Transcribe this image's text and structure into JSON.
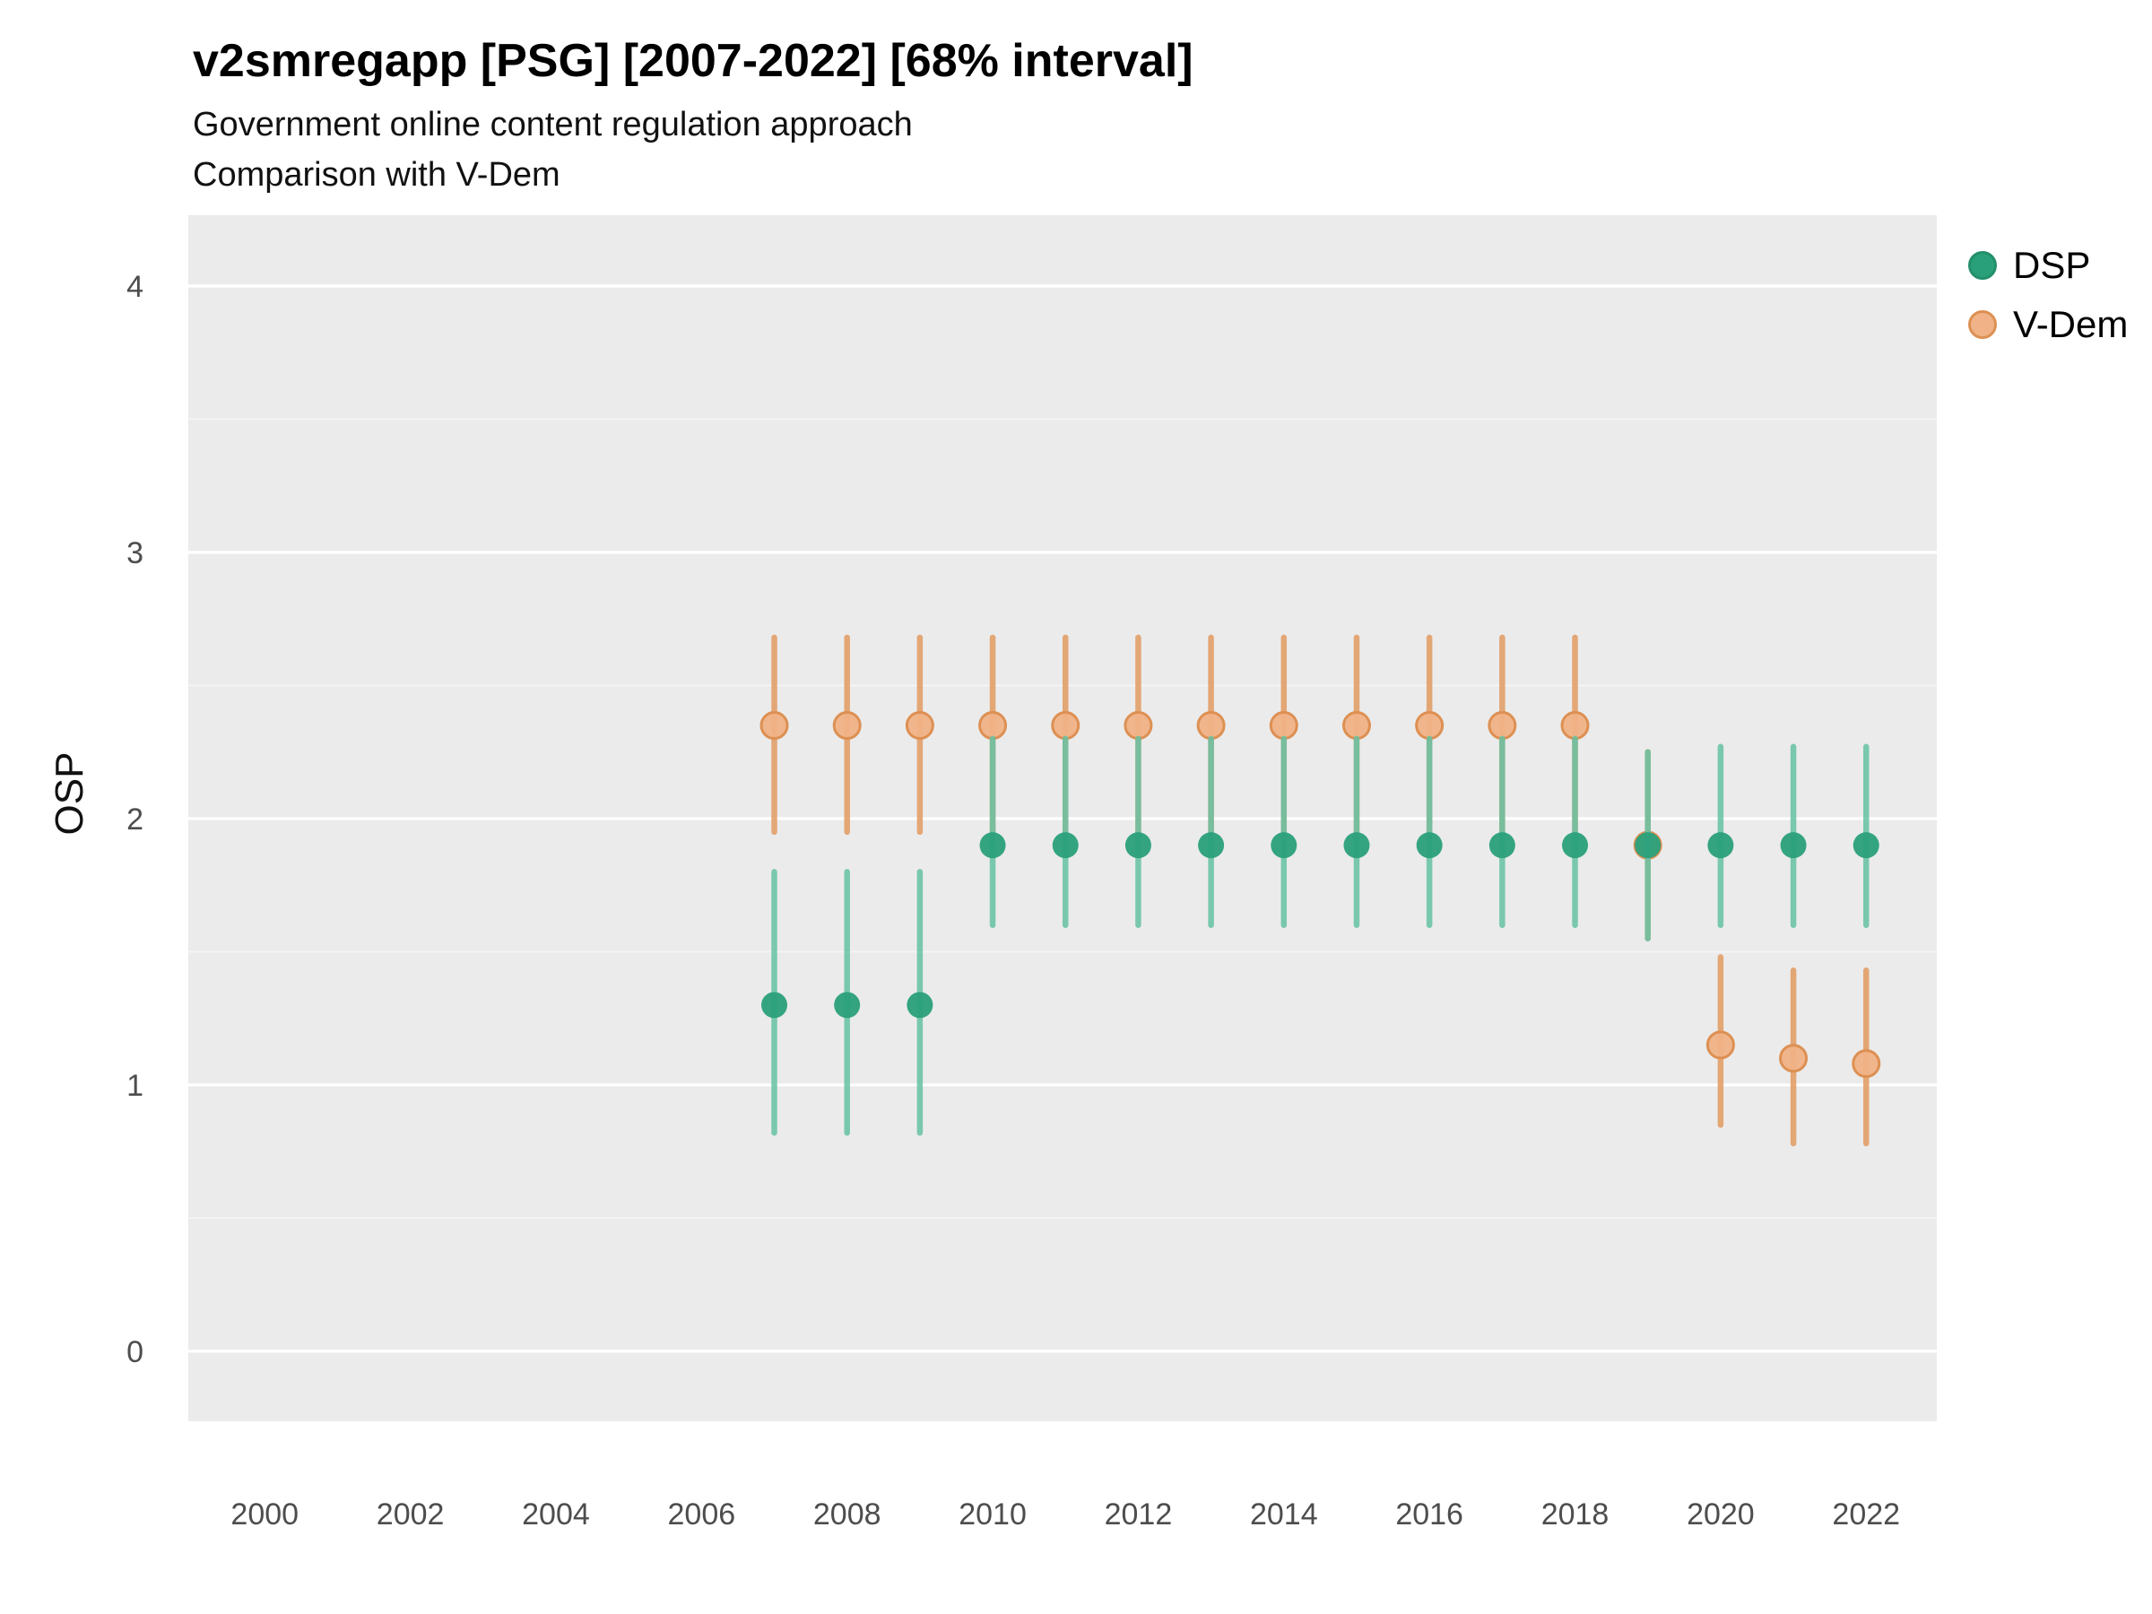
{
  "header": {
    "title": "v2smregapp [PSG] [2007-2022] [68% interval]",
    "subtitle1": "Government online content regulation approach",
    "subtitle2": "Comparison with V-Dem"
  },
  "colors": {
    "panel_bg": "#EBEBEB",
    "gridline": "#FFFFFF",
    "axis_text": "#4d4d4d",
    "dsp_point": "#2aa07a",
    "dsp_bar": "#66c2a4",
    "vdem_fill": "#f0b286",
    "vdem_stroke": "#dd9053",
    "vdem_bar": "#e29a61"
  },
  "legend": {
    "items": [
      {
        "label": "DSP",
        "fill": "#2aa07a",
        "stroke": "#238f6b"
      },
      {
        "label": "V-Dem",
        "fill": "#f0b286",
        "stroke": "#dd9053"
      }
    ]
  },
  "chart_data": {
    "type": "scatter",
    "title": "v2smregapp [PSG] [2007-2022] [68% interval]",
    "subtitle": "Government online content regulation approach — Comparison with V-Dem",
    "xlabel": "",
    "ylabel": "OSP",
    "xlim": [
      1999,
      2023
    ],
    "ylim": [
      -0.26,
      4.27
    ],
    "xticks": [
      2000,
      2002,
      2004,
      2006,
      2008,
      2010,
      2012,
      2014,
      2016,
      2018,
      2020,
      2022
    ],
    "yticks": [
      0,
      1,
      2,
      3,
      4
    ],
    "grid": "major-horizontal-white-on-gray",
    "legend_position": "right",
    "interval": "68%",
    "series": [
      {
        "name": "DSP",
        "point_color": "#2aa07a",
        "bar_color": "#66c2a4",
        "points": [
          {
            "year": 2007,
            "est": 1.3,
            "lo": 0.82,
            "hi": 1.8
          },
          {
            "year": 2008,
            "est": 1.3,
            "lo": 0.82,
            "hi": 1.8
          },
          {
            "year": 2009,
            "est": 1.3,
            "lo": 0.82,
            "hi": 1.8
          },
          {
            "year": 2010,
            "est": 1.9,
            "lo": 1.6,
            "hi": 2.3
          },
          {
            "year": 2011,
            "est": 1.9,
            "lo": 1.6,
            "hi": 2.3
          },
          {
            "year": 2012,
            "est": 1.9,
            "lo": 1.6,
            "hi": 2.3
          },
          {
            "year": 2013,
            "est": 1.9,
            "lo": 1.6,
            "hi": 2.3
          },
          {
            "year": 2014,
            "est": 1.9,
            "lo": 1.6,
            "hi": 2.3
          },
          {
            "year": 2015,
            "est": 1.9,
            "lo": 1.6,
            "hi": 2.3
          },
          {
            "year": 2016,
            "est": 1.9,
            "lo": 1.6,
            "hi": 2.3
          },
          {
            "year": 2017,
            "est": 1.9,
            "lo": 1.6,
            "hi": 2.3
          },
          {
            "year": 2018,
            "est": 1.9,
            "lo": 1.6,
            "hi": 2.3
          },
          {
            "year": 2019,
            "est": 1.9,
            "lo": 1.55,
            "hi": 2.25
          },
          {
            "year": 2020,
            "est": 1.9,
            "lo": 1.6,
            "hi": 2.27
          },
          {
            "year": 2021,
            "est": 1.9,
            "lo": 1.6,
            "hi": 2.27
          },
          {
            "year": 2022,
            "est": 1.9,
            "lo": 1.6,
            "hi": 2.27
          }
        ]
      },
      {
        "name": "V-Dem",
        "point_color": "#f0b286",
        "point_stroke": "#dd9053",
        "bar_color": "#e29a61",
        "points": [
          {
            "year": 2007,
            "est": 2.35,
            "lo": 1.95,
            "hi": 2.68
          },
          {
            "year": 2008,
            "est": 2.35,
            "lo": 1.95,
            "hi": 2.68
          },
          {
            "year": 2009,
            "est": 2.35,
            "lo": 1.95,
            "hi": 2.68
          },
          {
            "year": 2010,
            "est": 2.35,
            "lo": 1.95,
            "hi": 2.68
          },
          {
            "year": 2011,
            "est": 2.35,
            "lo": 1.95,
            "hi": 2.68
          },
          {
            "year": 2012,
            "est": 2.35,
            "lo": 1.95,
            "hi": 2.68
          },
          {
            "year": 2013,
            "est": 2.35,
            "lo": 1.95,
            "hi": 2.68
          },
          {
            "year": 2014,
            "est": 2.35,
            "lo": 1.95,
            "hi": 2.68
          },
          {
            "year": 2015,
            "est": 2.35,
            "lo": 1.95,
            "hi": 2.68
          },
          {
            "year": 2016,
            "est": 2.35,
            "lo": 1.95,
            "hi": 2.68
          },
          {
            "year": 2017,
            "est": 2.35,
            "lo": 1.95,
            "hi": 2.68
          },
          {
            "year": 2018,
            "est": 2.35,
            "lo": 1.95,
            "hi": 2.68
          },
          {
            "year": 2019,
            "est": 1.9,
            "lo": 1.55,
            "hi": 2.25
          },
          {
            "year": 2020,
            "est": 1.15,
            "lo": 0.85,
            "hi": 1.48
          },
          {
            "year": 2021,
            "est": 1.1,
            "lo": 0.78,
            "hi": 1.43
          },
          {
            "year": 2022,
            "est": 1.08,
            "lo": 0.78,
            "hi": 1.43
          }
        ]
      }
    ]
  }
}
